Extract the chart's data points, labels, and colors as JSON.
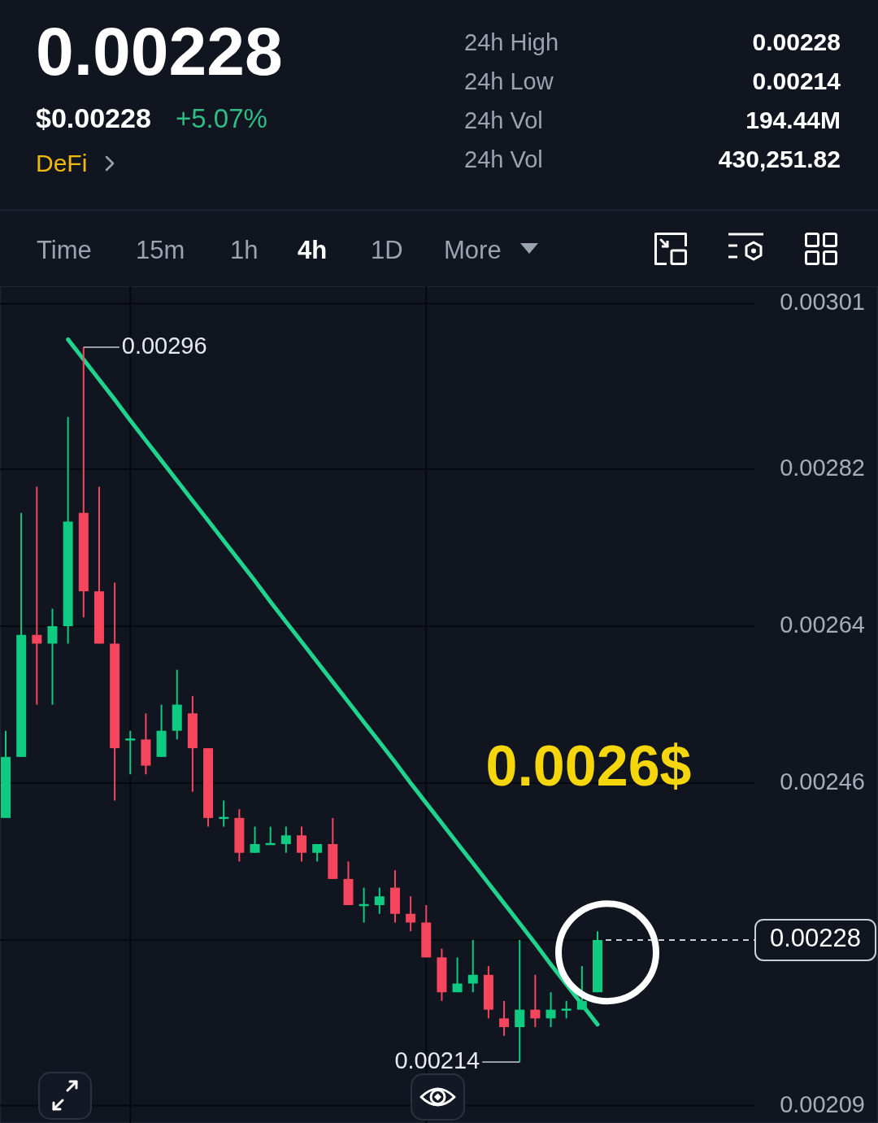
{
  "chart_data": [
    {
      "type": "other",
      "title": "0.00228",
      "annotations": [
        "$0.00228",
        "+5.07%",
        "DeFi",
        "24h High",
        "0.00228",
        "24h Low",
        "0.00214",
        "24h Vol",
        "194.44M",
        "24h Vol",
        "430,251.82",
        "Time",
        "15m",
        "1h",
        "4h",
        "1D",
        "More"
      ]
    },
    {
      "type": "candlestick",
      "categories": [
        null,
        null,
        null,
        null,
        null,
        null,
        null,
        null,
        null,
        null,
        null,
        null,
        null,
        null,
        null,
        null,
        null,
        null,
        null,
        null,
        null,
        null,
        null,
        null,
        null,
        null,
        null,
        null,
        null,
        null,
        null,
        null,
        null,
        null,
        null,
        null,
        null,
        null,
        null
      ],
      "ohlc": [
        [
          0.00242,
          0.00252,
          0.00242,
          0.00249
        ],
        [
          0.00249,
          0.00277,
          0.00249,
          0.00263
        ],
        [
          0.00263,
          0.0028,
          0.00255,
          0.00262
        ],
        [
          0.00262,
          0.00266,
          0.00255,
          0.00264
        ],
        [
          0.00264,
          0.00288,
          0.00262,
          0.00276
        ],
        [
          0.00277,
          0.00296,
          0.00265,
          0.00268
        ],
        [
          0.00268,
          0.0028,
          0.00262,
          0.00262
        ],
        [
          0.00262,
          0.00269,
          0.00244,
          0.0025
        ],
        [
          0.00251,
          0.00252,
          0.00247,
          0.00251
        ],
        [
          0.00251,
          0.00254,
          0.00247,
          0.00248
        ],
        [
          0.00249,
          0.00255,
          0.00249,
          0.00252
        ],
        [
          0.00252,
          0.00259,
          0.00251,
          0.00255
        ],
        [
          0.00254,
          0.00256,
          0.00245,
          0.0025
        ],
        [
          0.0025,
          0.0025,
          0.00241,
          0.00242
        ],
        [
          0.00242,
          0.00244,
          0.00241,
          0.00242
        ],
        [
          0.00242,
          0.00243,
          0.00237,
          0.00238
        ],
        [
          0.00238,
          0.00241,
          0.00238,
          0.00239
        ],
        [
          0.00239,
          0.00241,
          0.00239,
          0.00239
        ],
        [
          0.00239,
          0.00241,
          0.00238,
          0.0024
        ],
        [
          0.0024,
          0.00241,
          0.00237,
          0.00238
        ],
        [
          0.00238,
          0.00239,
          0.00237,
          0.00239
        ],
        [
          0.00239,
          0.00242,
          0.00235,
          0.00235
        ],
        [
          0.00235,
          0.00237,
          0.00232,
          0.00232
        ],
        [
          0.00232,
          0.00234,
          0.0023,
          0.00232
        ],
        [
          0.00232,
          0.00234,
          0.00231,
          0.00233
        ],
        [
          0.00234,
          0.00236,
          0.0023,
          0.00231
        ],
        [
          0.00231,
          0.00233,
          0.00229,
          0.0023
        ],
        [
          0.0023,
          0.00232,
          0.00226,
          0.00226
        ],
        [
          0.00226,
          0.00227,
          0.00221,
          0.00222
        ],
        [
          0.00222,
          0.00226,
          0.00222,
          0.00223
        ],
        [
          0.00223,
          0.00228,
          0.00222,
          0.00224
        ],
        [
          0.00224,
          0.00225,
          0.00219,
          0.0022
        ],
        [
          0.00219,
          0.00221,
          0.00217,
          0.00218
        ],
        [
          0.00218,
          0.00228,
          0.00214,
          0.0022
        ],
        [
          0.0022,
          0.00224,
          0.00218,
          0.00219
        ],
        [
          0.00219,
          0.00222,
          0.00218,
          0.0022
        ],
        [
          0.0022,
          0.00221,
          0.00219,
          0.0022
        ],
        [
          0.0022,
          0.00225,
          0.0022,
          0.00221
        ],
        [
          0.00222,
          0.00229,
          0.00222,
          0.00228
        ]
      ],
      "colors": [
        "#0ecb81",
        "#0ecb81",
        "#f6465d",
        "#0ecb81",
        "#0ecb81",
        "#f6465d",
        "#f6465d",
        "#f6465d",
        "#0ecb81",
        "#f6465d",
        "#0ecb81",
        "#0ecb81",
        "#f6465d",
        "#f6465d",
        "#0ecb81",
        "#f6465d",
        "#0ecb81",
        "#0ecb81",
        "#0ecb81",
        "#f6465d",
        "#0ecb81",
        "#f6465d",
        "#f6465d",
        "#0ecb81",
        "#0ecb81",
        "#f6465d",
        "#f6465d",
        "#f6465d",
        "#f6465d",
        "#0ecb81",
        "#0ecb81",
        "#f6465d",
        "#f6465d",
        "#0ecb81",
        "#f6465d",
        "#0ecb81",
        "#0ecb81",
        "#0ecb81",
        "#0ecb81"
      ],
      "series": [
        {
          "type": "line",
          "color": "#20d38f",
          "values": [
            null,
            null,
            null,
            null,
            0.002969,
            0.002946,
            0.002923,
            0.0029,
            0.002876,
            0.002853,
            0.00283,
            0.002807,
            0.002784,
            0.002761,
            0.002738,
            0.002715,
            0.002692,
            0.002668,
            0.002645,
            0.002622,
            0.002599,
            0.002576,
            0.002553,
            0.00253,
            0.002507,
            0.002484,
            0.00246,
            0.002437,
            0.002414,
            0.002391,
            0.002368,
            0.002345,
            0.002322,
            0.002299,
            0.002276,
            0.002252,
            0.002229,
            0.002206,
            0.002183
          ]
        }
      ],
      "ylim": [
        0.00207,
        0.00303
      ],
      "yticks": [
        0.00209,
        {
          "value": 0.00228,
          "label": null
        },
        0.00246,
        0.00264,
        0.00282,
        0.00301
      ],
      "grid": true,
      "tick_labels": "y",
      "ref_lines": [
        {
          "axis": "y",
          "value": 0.00228,
          "label": "0.00228",
          "color": "#c9ced6",
          "line_style": "dashed"
        }
      ],
      "annotations": [
        "0.00296",
        "0.00214",
        "0.0026$"
      ]
    }
  ]
}
